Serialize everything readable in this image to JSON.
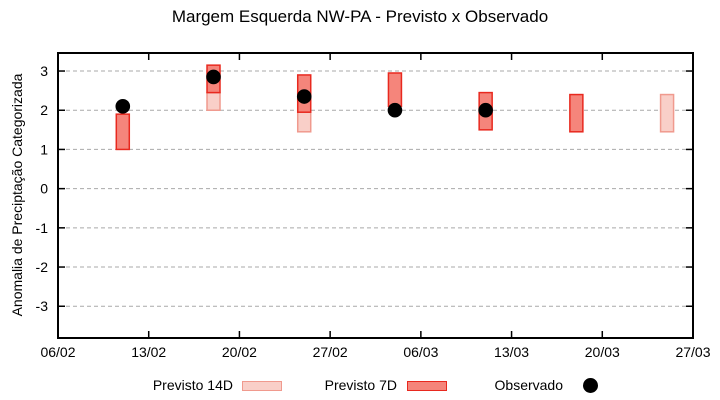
{
  "title": "Margem Esquerda NW-PA - Previsto x Observado",
  "y_axis_label": "Anomalia de Preciptação Categorizada",
  "legend": {
    "p14_label": "Previsto 14D",
    "p7_label": "Previsto 7D",
    "obs_label": "Observado"
  },
  "colors": {
    "p14_fill": "#f9cfc8",
    "p14_border": "#f09a8e",
    "p7_fill": "#f5857b",
    "p7_border": "#e8291f",
    "observed": "#000000",
    "grid": "#a9a9a9",
    "axis": "#000000"
  },
  "chart_data": {
    "type": "bar",
    "subtype": "weekly forecast range bars with observed scatter points",
    "title": "Margem Esquerda NW-PA - Previsto x Observado",
    "xlabel": "",
    "ylabel": "Anomalia de Preciptação Categorizada",
    "ylim": [
      -3.8,
      3.5
    ],
    "yticks": [
      -3,
      -2,
      -1,
      0,
      1,
      2,
      3
    ],
    "xticks": [
      "06/02",
      "13/02",
      "20/02",
      "27/02",
      "06/03",
      "13/03",
      "20/03",
      "27/03"
    ],
    "x_tick_offsets_days": [
      0,
      7,
      14,
      21,
      28,
      35,
      42,
      49
    ],
    "grid": "horizontal dashed",
    "legend_position": "below plot",
    "series": [
      {
        "name": "Previsto 14D",
        "type": "range-bar",
        "points": [
          {
            "date": "18/02",
            "day": 12,
            "low": 2.0,
            "high": 2.45
          },
          {
            "date": "25/02",
            "day": 19,
            "low": 1.45,
            "high": 1.95
          },
          {
            "date": "25/03",
            "day": 47,
            "low": 1.45,
            "high": 2.4
          }
        ]
      },
      {
        "name": "Previsto 7D",
        "type": "range-bar",
        "points": [
          {
            "date": "11/02",
            "day": 5,
            "low": 1.0,
            "high": 1.9
          },
          {
            "date": "18/02",
            "day": 12,
            "low": 2.45,
            "high": 3.15
          },
          {
            "date": "25/02",
            "day": 19,
            "low": 1.95,
            "high": 2.9
          },
          {
            "date": "04/03",
            "day": 26,
            "low": 2.1,
            "high": 2.95
          },
          {
            "date": "11/03",
            "day": 33,
            "low": 1.5,
            "high": 2.45
          },
          {
            "date": "18/03",
            "day": 40,
            "low": 1.45,
            "high": 2.4
          }
        ]
      },
      {
        "name": "Observado",
        "type": "scatter",
        "points": [
          {
            "date": "11/02",
            "day": 5,
            "value": 2.1
          },
          {
            "date": "18/02",
            "day": 12,
            "value": 2.85
          },
          {
            "date": "25/02",
            "day": 19,
            "value": 2.35
          },
          {
            "date": "04/03",
            "day": 26,
            "value": 2.0
          },
          {
            "date": "11/03",
            "day": 33,
            "value": 2.0
          }
        ]
      }
    ]
  }
}
